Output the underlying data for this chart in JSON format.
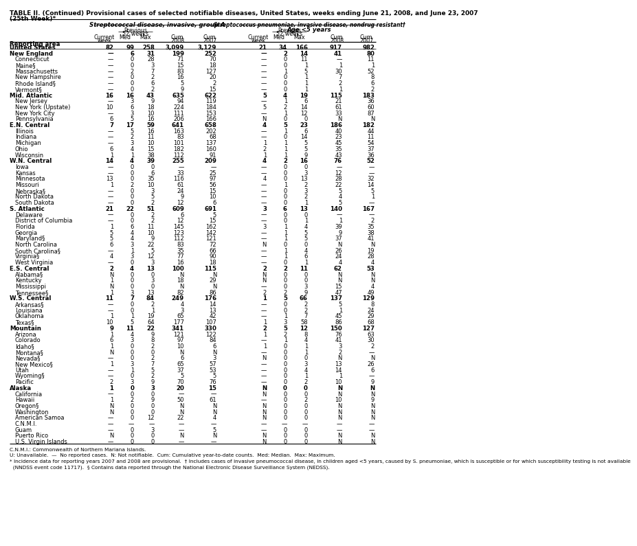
{
  "title_line1": "TABLE II. (Continued) Provisional cases of selected notifiable diseases, United States, weeks ending June 21, 2008, and June 23, 2007",
  "title_line2": "(25th Week)*",
  "col_group1": "Streptococcal disease, invasive, group A",
  "col_group2": "Streptococcus pneumoniae, invasive disease, nondrug resistant†",
  "col_group2_sub": "Age <5 years",
  "rows": [
    [
      "United States",
      "82",
      "99",
      "258",
      "3,099",
      "3,129",
      "21",
      "34",
      "166",
      "917",
      "982"
    ],
    [
      "New England",
      "—",
      "6",
      "31",
      "199",
      "252",
      "—",
      "2",
      "14",
      "41",
      "80"
    ],
    [
      "Connecticut",
      "—",
      "0",
      "28",
      "71",
      "70",
      "—",
      "0",
      "11",
      "—",
      "11"
    ],
    [
      "Maine§",
      "—",
      "0",
      "3",
      "15",
      "18",
      "—",
      "0",
      "1",
      "1",
      "1"
    ],
    [
      "Massachusetts",
      "—",
      "2",
      "7",
      "83",
      "127",
      "—",
      "1",
      "5",
      "30",
      "52"
    ],
    [
      "New Hampshire",
      "—",
      "0",
      "2",
      "16",
      "20",
      "—",
      "0",
      "1",
      "7",
      "8"
    ],
    [
      "Rhode Island§",
      "—",
      "0",
      "6",
      "5",
      "2",
      "—",
      "0",
      "1",
      "2",
      "6"
    ],
    [
      "Vermont§",
      "—",
      "0",
      "2",
      "9",
      "15",
      "—",
      "0",
      "1",
      "1",
      "2"
    ],
    [
      "Mid. Atlantic",
      "16",
      "16",
      "43",
      "635",
      "622",
      "5",
      "4",
      "19",
      "115",
      "183"
    ],
    [
      "New Jersey",
      "—",
      "3",
      "9",
      "94",
      "119",
      "—",
      "1",
      "6",
      "21",
      "36"
    ],
    [
      "New York (Upstate)",
      "10",
      "6",
      "18",
      "224",
      "184",
      "5",
      "2",
      "14",
      "61",
      "60"
    ],
    [
      "New York City",
      "—",
      "3",
      "10",
      "111",
      "153",
      "—",
      "1",
      "12",
      "33",
      "87"
    ],
    [
      "Pennsylvania",
      "6",
      "5",
      "16",
      "206",
      "166",
      "N",
      "0",
      "0",
      "N",
      "N"
    ],
    [
      "E.N. Central",
      "7",
      "17",
      "59",
      "641",
      "658",
      "4",
      "5",
      "23",
      "186",
      "182"
    ],
    [
      "Illinois",
      "—",
      "5",
      "16",
      "163",
      "202",
      "—",
      "1",
      "6",
      "40",
      "44"
    ],
    [
      "Indiana",
      "—",
      "2",
      "11",
      "83",
      "68",
      "—",
      "0",
      "14",
      "23",
      "11"
    ],
    [
      "Michigan",
      "—",
      "3",
      "10",
      "101",
      "137",
      "1",
      "1",
      "5",
      "45",
      "54"
    ],
    [
      "Ohio",
      "6",
      "4",
      "15",
      "182",
      "160",
      "2",
      "1",
      "5",
      "35",
      "37"
    ],
    [
      "Wisconsin",
      "1",
      "1",
      "38",
      "112",
      "91",
      "1",
      "1",
      "9",
      "43",
      "36"
    ],
    [
      "W.N. Central",
      "14",
      "4",
      "39",
      "255",
      "209",
      "4",
      "2",
      "16",
      "76",
      "52"
    ],
    [
      "Iowa",
      "—",
      "0",
      "0",
      "—",
      "—",
      "—",
      "0",
      "0",
      "—",
      "—"
    ],
    [
      "Kansas",
      "—",
      "0",
      "6",
      "33",
      "25",
      "—",
      "0",
      "3",
      "12",
      "—"
    ],
    [
      "Minnesota",
      "13",
      "0",
      "35",
      "116",
      "97",
      "4",
      "0",
      "13",
      "28",
      "32"
    ],
    [
      "Missouri",
      "1",
      "2",
      "10",
      "61",
      "56",
      "—",
      "1",
      "2",
      "22",
      "14"
    ],
    [
      "Nebraska§",
      "—",
      "0",
      "3",
      "24",
      "15",
      "—",
      "0",
      "3",
      "5",
      "5"
    ],
    [
      "North Dakota",
      "—",
      "0",
      "5",
      "9",
      "10",
      "—",
      "0",
      "2",
      "4",
      "1"
    ],
    [
      "South Dakota",
      "—",
      "0",
      "2",
      "12",
      "6",
      "—",
      "0",
      "1",
      "5",
      "—"
    ],
    [
      "S. Atlantic",
      "21",
      "22",
      "51",
      "609",
      "691",
      "3",
      "6",
      "13",
      "140",
      "167"
    ],
    [
      "Delaware",
      "—",
      "0",
      "2",
      "6",
      "5",
      "—",
      "0",
      "0",
      "—",
      "—"
    ],
    [
      "District of Columbia",
      "—",
      "0",
      "2",
      "12",
      "15",
      "—",
      "0",
      "1",
      "1",
      "2"
    ],
    [
      "Florida",
      "1",
      "6",
      "11",
      "145",
      "162",
      "3",
      "1",
      "4",
      "39",
      "35"
    ],
    [
      "Georgia",
      "5",
      "4",
      "10",
      "123",
      "142",
      "—",
      "1",
      "5",
      "9",
      "38"
    ],
    [
      "Maryland§",
      "5",
      "4",
      "9",
      "112",
      "121",
      "—",
      "1",
      "5",
      "37",
      "41"
    ],
    [
      "North Carolina",
      "6",
      "3",
      "22",
      "83",
      "72",
      "N",
      "0",
      "0",
      "N",
      "N"
    ],
    [
      "South Carolina§",
      "—",
      "1",
      "5",
      "35",
      "66",
      "—",
      "1",
      "4",
      "26",
      "19"
    ],
    [
      "Virginia§",
      "4",
      "3",
      "12",
      "77",
      "90",
      "—",
      "1",
      "6",
      "24",
      "28"
    ],
    [
      "West Virginia",
      "—",
      "0",
      "3",
      "16",
      "18",
      "—",
      "0",
      "1",
      "4",
      "4"
    ],
    [
      "E.S. Central",
      "2",
      "4",
      "13",
      "100",
      "115",
      "2",
      "2",
      "11",
      "62",
      "53"
    ],
    [
      "Alabama§",
      "N",
      "0",
      "0",
      "N",
      "N",
      "N",
      "0",
      "0",
      "N",
      "N"
    ],
    [
      "Kentucky",
      "1",
      "0",
      "3",
      "18",
      "29",
      "N",
      "0",
      "0",
      "N",
      "N"
    ],
    [
      "Mississippi",
      "N",
      "0",
      "0",
      "N",
      "N",
      "—",
      "0",
      "3",
      "15",
      "4"
    ],
    [
      "Tennessee§",
      "1",
      "3",
      "13",
      "82",
      "86",
      "2",
      "2",
      "9",
      "47",
      "49"
    ],
    [
      "W.S. Central",
      "11",
      "7",
      "84",
      "249",
      "176",
      "1",
      "5",
      "66",
      "137",
      "129"
    ],
    [
      "Arkansas§",
      "—",
      "0",
      "2",
      "4",
      "14",
      "—",
      "0",
      "2",
      "5",
      "8"
    ],
    [
      "Louisiana",
      "—",
      "0",
      "1",
      "3",
      "13",
      "—",
      "0",
      "2",
      "1",
      "24"
    ],
    [
      "Oklahoma",
      "1",
      "1",
      "19",
      "65",
      "42",
      "—",
      "1",
      "7",
      "45",
      "29"
    ],
    [
      "Texas§",
      "10",
      "5",
      "64",
      "177",
      "107",
      "1",
      "3",
      "58",
      "86",
      "68"
    ],
    [
      "Mountain",
      "9",
      "11",
      "22",
      "341",
      "330",
      "2",
      "5",
      "12",
      "150",
      "127"
    ],
    [
      "Arizona",
      "1",
      "4",
      "9",
      "121",
      "122",
      "1",
      "2",
      "8",
      "76",
      "63"
    ],
    [
      "Colorado",
      "6",
      "3",
      "8",
      "97",
      "84",
      "—",
      "1",
      "4",
      "41",
      "30"
    ],
    [
      "Idaho§",
      "1",
      "0",
      "2",
      "10",
      "6",
      "1",
      "0",
      "1",
      "3",
      "2"
    ],
    [
      "Montana§",
      "N",
      "0",
      "0",
      "N",
      "N",
      "—",
      "0",
      "1",
      "2",
      "—"
    ],
    [
      "Nevada§",
      "—",
      "0",
      "2",
      "6",
      "3",
      "N",
      "0",
      "0",
      "N",
      "N"
    ],
    [
      "New Mexico§",
      "1",
      "3",
      "7",
      "65",
      "57",
      "—",
      "0",
      "3",
      "13",
      "26"
    ],
    [
      "Utah",
      "—",
      "1",
      "5",
      "37",
      "53",
      "—",
      "0",
      "4",
      "14",
      "6"
    ],
    [
      "Wyoming§",
      "—",
      "0",
      "2",
      "5",
      "5",
      "—",
      "0",
      "1",
      "1",
      "—"
    ],
    [
      "Pacific",
      "2",
      "3",
      "9",
      "70",
      "76",
      "—",
      "0",
      "2",
      "10",
      "9"
    ],
    [
      "Alaska",
      "1",
      "0",
      "3",
      "20",
      "15",
      "N",
      "0",
      "0",
      "N",
      "N"
    ],
    [
      "California",
      "—",
      "0",
      "0",
      "—",
      "—",
      "N",
      "0",
      "0",
      "N",
      "N"
    ],
    [
      "Hawaii",
      "1",
      "2",
      "9",
      "50",
      "61",
      "—",
      "0",
      "2",
      "10",
      "9"
    ],
    [
      "Oregon§",
      "N",
      "0",
      "0",
      "N",
      "N",
      "N",
      "0",
      "0",
      "N",
      "N"
    ],
    [
      "Washington",
      "N",
      "0",
      "0",
      "N",
      "N",
      "N",
      "0",
      "0",
      "N",
      "N"
    ],
    [
      "American Samoa",
      "—",
      "0",
      "12",
      "22",
      "4",
      "N",
      "0",
      "0",
      "N",
      "N"
    ],
    [
      "C.N.M.I.",
      "—",
      "—",
      "—",
      "—",
      "—",
      "—",
      "—",
      "—",
      "—",
      "—"
    ],
    [
      "Guam",
      "—",
      "0",
      "3",
      "—",
      "5",
      "—",
      "0",
      "0",
      "—",
      "—"
    ],
    [
      "Puerto Rico",
      "N",
      "0",
      "0",
      "N",
      "N",
      "N",
      "0",
      "0",
      "N",
      "N"
    ],
    [
      "U.S. Virgin Islands",
      "—",
      "0",
      "0",
      "—",
      "—",
      "N",
      "0",
      "0",
      "N",
      "N"
    ]
  ],
  "bold_rows": [
    0,
    1,
    8,
    13,
    19,
    27,
    37,
    42,
    47,
    57
  ],
  "section_rows": [
    1,
    8,
    13,
    19,
    27,
    37,
    42,
    47,
    57
  ],
  "footnote1": "C.N.M.I.: Commonwealth of Northern Mariana Islands.",
  "footnote2": "U: Unavailable.  —  No reported cases.  N: Not notifiable.  Cum: Cumulative year-to-date counts.  Med: Median.  Max: Maximum.",
  "footnote3": "* Incidence data for reporting years 2007 and 2008 are provisional.  † Includes cases of invasive pneumococcal disease, in children aged <5 years, caused by S. pneumoniae, which is susceptible or for which susceptibility testing is not available",
  "footnote4": "  (NNDSS event code 11717).  § Contains data reported through the National Electronic Disease Surveillance System (NEDSS)."
}
